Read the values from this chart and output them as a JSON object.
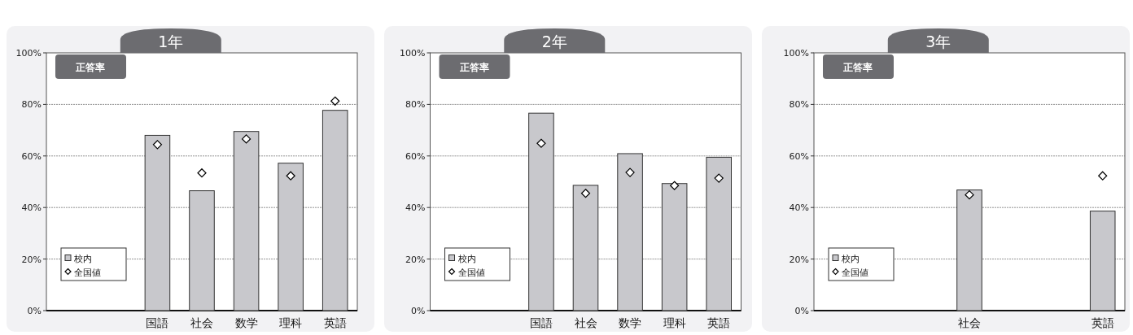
{
  "chart_data": [
    {
      "type": "bar",
      "title": "1年",
      "annotations": [
        "正答率"
      ],
      "categories": [
        null,
        null,
        "国語",
        "社会",
        "数学",
        "理科",
        "英語"
      ],
      "series": [
        {
          "name": "校内",
          "type": "bar",
          "color": "#c8c8cc",
          "values": [
            null,
            null,
            68,
            46.5,
            69.5,
            57.2,
            77.7
          ]
        },
        {
          "name": "全国値",
          "type": "scatter",
          "color": "#ffffff",
          "values": [
            null,
            null,
            64.4,
            53.4,
            66.6,
            52.3,
            81.3
          ]
        }
      ],
      "marker": "diamond",
      "ylim": [
        0,
        100
      ],
      "yticks": [
        {
          "value": 0,
          "label": "0%"
        },
        {
          "value": 20,
          "label": "20%"
        },
        {
          "value": 40,
          "label": "40%"
        },
        {
          "value": 60,
          "label": "60%"
        },
        {
          "value": 80,
          "label": "80%"
        },
        {
          "value": 100,
          "label": "100%"
        }
      ],
      "grid": "y",
      "legend": "bottom left"
    },
    {
      "type": "bar",
      "title": "2年",
      "annotations": [
        "正答率"
      ],
      "categories": [
        null,
        null,
        "国語",
        "社会",
        "数学",
        "理科",
        "英語"
      ],
      "series": [
        {
          "name": "校内",
          "type": "bar",
          "color": "#c8c8cc",
          "values": [
            null,
            null,
            76.6,
            48.6,
            60.9,
            49.3,
            59.5
          ]
        },
        {
          "name": "全国値",
          "type": "scatter",
          "color": "#ffffff",
          "values": [
            null,
            null,
            64.9,
            45.5,
            53.6,
            48.5,
            51.4
          ]
        }
      ],
      "marker": "diamond",
      "ylim": [
        0,
        100
      ],
      "yticks": [
        {
          "value": 0,
          "label": "0%"
        },
        {
          "value": 20,
          "label": "20%"
        },
        {
          "value": 40,
          "label": "40%"
        },
        {
          "value": 60,
          "label": "60%"
        },
        {
          "value": 80,
          "label": "80%"
        },
        {
          "value": 100,
          "label": "100%"
        }
      ],
      "grid": "y",
      "legend": "bottom left"
    },
    {
      "type": "bar",
      "title": "3年",
      "annotations": [
        "正答率"
      ],
      "categories": [
        null,
        null,
        null,
        "社会",
        null,
        null,
        "英語"
      ],
      "series": [
        {
          "name": "校内",
          "type": "bar",
          "color": "#c8c8cc",
          "values": [
            null,
            null,
            null,
            46.8,
            null,
            null,
            38.6
          ]
        },
        {
          "name": "全国値",
          "type": "scatter",
          "color": "#ffffff",
          "values": [
            null,
            null,
            null,
            44.9,
            null,
            null,
            52.3
          ]
        }
      ],
      "marker": "diamond",
      "ylim": [
        0,
        100
      ],
      "yticks": [
        {
          "value": 0,
          "label": "0%"
        },
        {
          "value": 20,
          "label": "20%"
        },
        {
          "value": 40,
          "label": "40%"
        },
        {
          "value": 60,
          "label": "60%"
        },
        {
          "value": 80,
          "label": "80%"
        },
        {
          "value": 100,
          "label": "100%"
        }
      ],
      "grid": "y",
      "legend": "bottom left"
    }
  ]
}
